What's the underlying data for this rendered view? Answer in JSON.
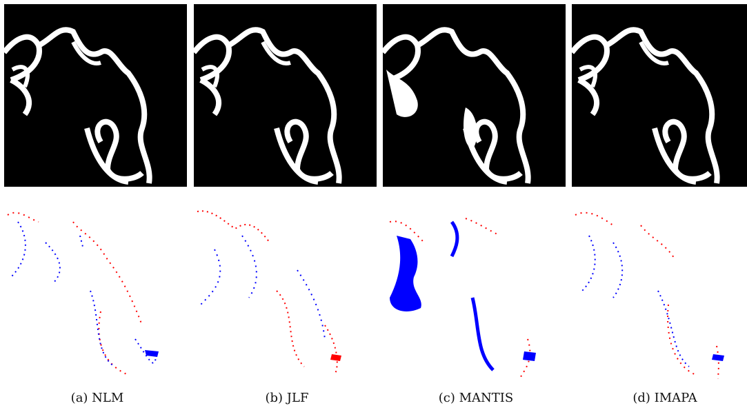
{
  "figure": {
    "columns": [
      {
        "method": "NLM",
        "caption": "(a) NLM"
      },
      {
        "method": "JLF",
        "caption": "(b) JLF"
      },
      {
        "method": "MANTIS",
        "caption": "(c) MANTIS"
      },
      {
        "method": "IMAPA",
        "caption": "(d) IMAPA"
      }
    ],
    "colors": {
      "segmentation_background": "#000000",
      "segmentation_foreground": "#ffffff",
      "false_positive": "#ff0000",
      "false_negative": "#0000ff",
      "error_background": "#ffffff"
    }
  }
}
